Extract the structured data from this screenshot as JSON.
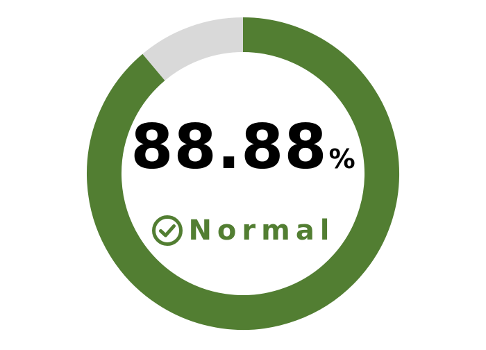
{
  "chart_data": {
    "type": "pie",
    "variant": "donut-gauge",
    "value": 88.88,
    "max": 100,
    "value_text": "88.88",
    "unit": "%",
    "colors": {
      "fill": "#527e32",
      "track": "#d9d9d9",
      "value_text": "#000000"
    }
  },
  "status": {
    "label": "Normal",
    "icon": "check-circle-icon",
    "color": "#527e32"
  }
}
